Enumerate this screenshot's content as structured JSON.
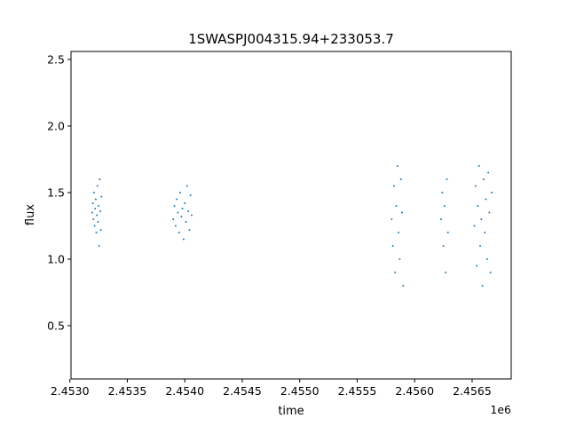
{
  "chart_data": {
    "type": "scatter",
    "title": "1SWASPJ004315.94+233053.7",
    "xlabel": "time",
    "ylabel": "flux",
    "x_offset_label": "1e6",
    "xlim": [
      2453010,
      2456840
    ],
    "ylim": [
      0.1,
      2.56
    ],
    "x_ticks": [
      2453000,
      2453500,
      2454000,
      2454500,
      2455000,
      2455500,
      2456000,
      2456500
    ],
    "x_tick_labels": [
      "2.4530",
      "2.4535",
      "2.4540",
      "2.4545",
      "2.4550",
      "2.4555",
      "2.4560",
      "2.4565"
    ],
    "y_ticks": [
      0.5,
      1.0,
      1.5,
      2.0,
      2.5
    ],
    "y_tick_labels": [
      "0.5",
      "1.0",
      "1.5",
      "2.0",
      "2.5"
    ],
    "grid": false,
    "legend": "none",
    "marker_color": "#1f77b4",
    "series": [
      {
        "x": [
          2453195,
          2453200,
          2453205,
          2453210,
          2453215,
          2453220,
          2453225,
          2453230,
          2453235,
          2453240,
          2453245,
          2453250,
          2453255,
          2453260,
          2453265,
          2453270,
          2453275
        ],
        "y": [
          1.35,
          1.42,
          1.3,
          1.5,
          1.25,
          1.38,
          1.45,
          1.2,
          1.33,
          1.55,
          1.28,
          1.4,
          1.1,
          1.6,
          1.36,
          1.22,
          1.47
        ]
      },
      {
        "x": [
          2453900,
          2453910,
          2453920,
          2453930,
          2453940,
          2453950,
          2453960,
          2453970,
          2453980,
          2453990,
          2454000,
          2454010,
          2454020,
          2454030,
          2454040,
          2454050,
          2454060
        ],
        "y": [
          1.3,
          1.4,
          1.25,
          1.45,
          1.35,
          1.2,
          1.5,
          1.32,
          1.38,
          1.15,
          1.42,
          1.28,
          1.55,
          1.36,
          1.22,
          1.48,
          1.33
        ]
      },
      {
        "x": [
          2455800,
          2455810,
          2455820,
          2455830,
          2455840,
          2455850,
          2455860,
          2455870,
          2455880,
          2455890,
          2455900
        ],
        "y": [
          1.3,
          1.1,
          1.55,
          0.9,
          1.4,
          1.7,
          1.2,
          1.0,
          1.6,
          1.35,
          0.8
        ]
      },
      {
        "x": [
          2456230,
          2456240,
          2456250,
          2456260,
          2456270,
          2456280,
          2456290
        ],
        "y": [
          1.3,
          1.5,
          1.1,
          1.4,
          0.9,
          1.6,
          1.2
        ]
      },
      {
        "x": [
          2456520,
          2456530,
          2456540,
          2456550,
          2456560,
          2456570,
          2456580,
          2456590,
          2456600,
          2456610,
          2456620,
          2456630,
          2456640,
          2456650,
          2456660,
          2456670
        ],
        "y": [
          1.25,
          1.55,
          0.95,
          1.4,
          1.7,
          1.1,
          1.3,
          0.8,
          1.6,
          1.2,
          1.45,
          1.0,
          1.65,
          1.35,
          0.9,
          1.5
        ]
      }
    ]
  }
}
